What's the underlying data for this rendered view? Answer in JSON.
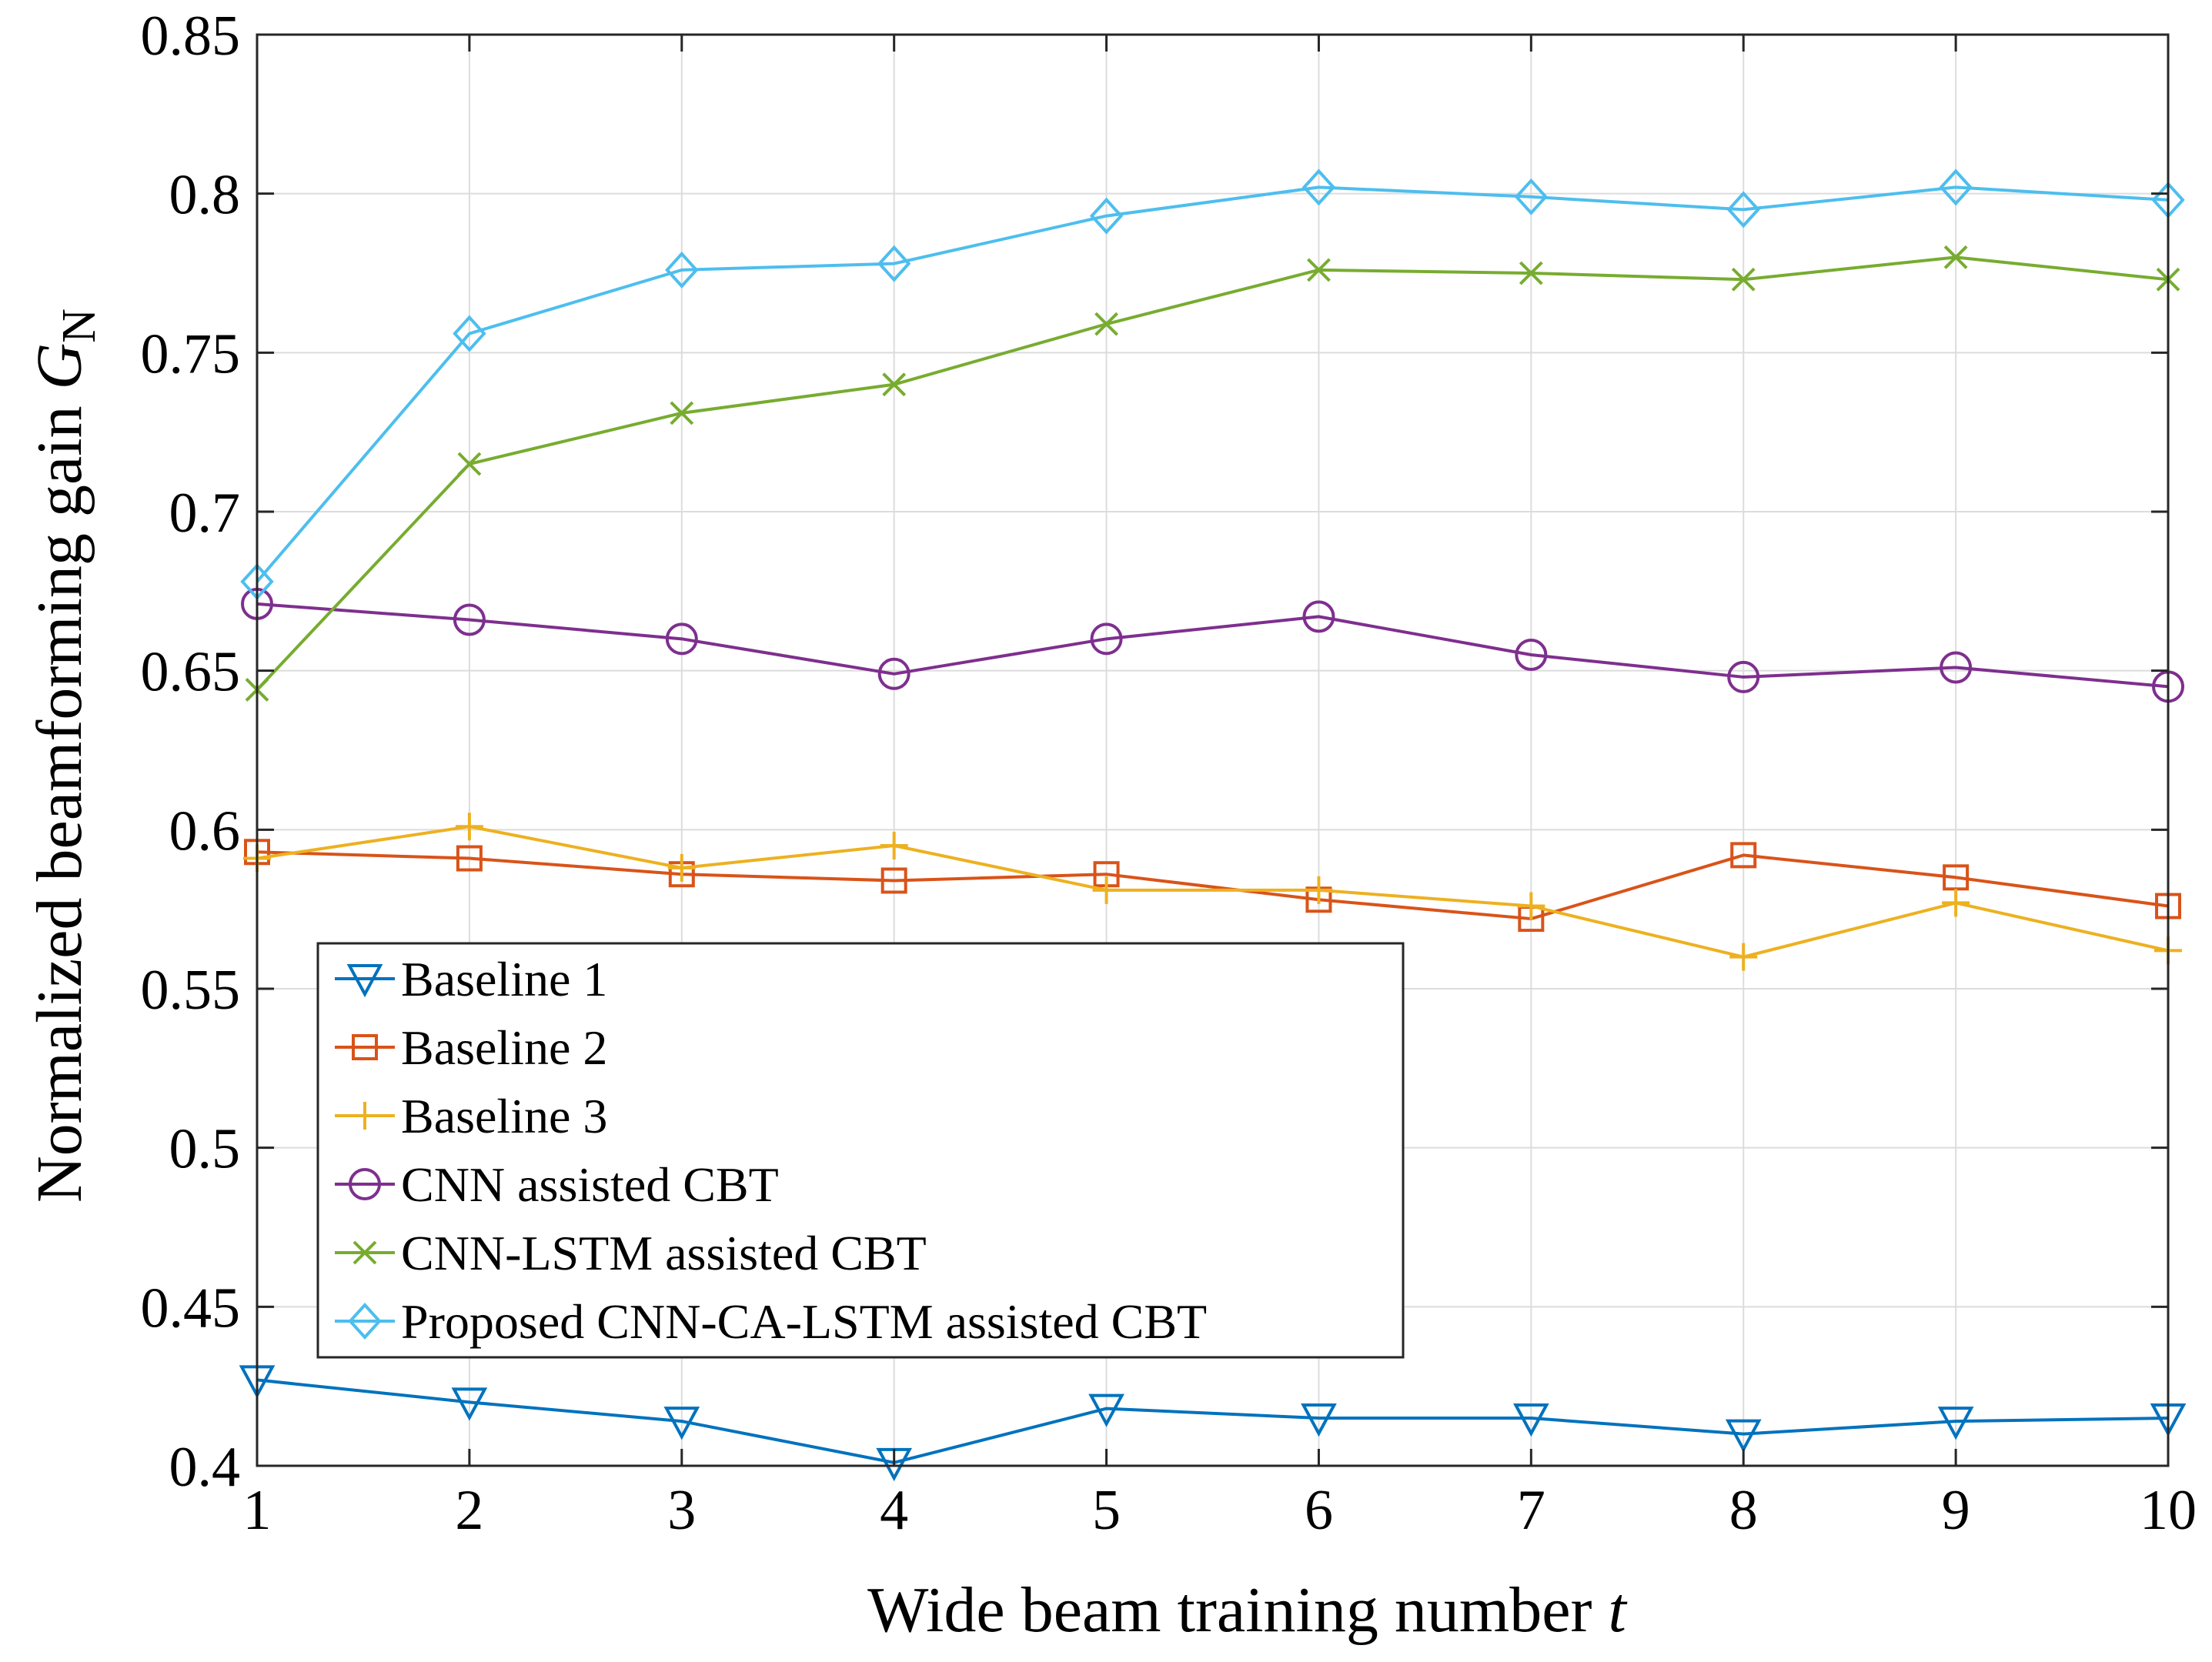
{
  "chart_data": {
    "type": "line",
    "xlabel": "Wide beam training number",
    "xlabel_var": "t",
    "ylabel": "Normalized beamforming gain",
    "ylabel_var": "G",
    "ylabel_sub": "N",
    "x": [
      1,
      2,
      3,
      4,
      5,
      6,
      7,
      8,
      9,
      10
    ],
    "xlim": [
      1,
      10
    ],
    "ylim": [
      0.4,
      0.85
    ],
    "x_ticks": [
      "1",
      "2",
      "3",
      "4",
      "5",
      "6",
      "7",
      "8",
      "9",
      "10"
    ],
    "y_ticks": [
      "0.4",
      "0.45",
      "0.5",
      "0.55",
      "0.6",
      "0.65",
      "0.7",
      "0.75",
      "0.8",
      "0.85"
    ],
    "grid": true,
    "legend_position": "lower-left",
    "series": [
      {
        "name": "Baseline 1",
        "color": "#0072BD",
        "marker": "triangle-down",
        "values": [
          0.427,
          0.42,
          0.414,
          0.401,
          0.418,
          0.415,
          0.415,
          0.41,
          0.414,
          0.415
        ]
      },
      {
        "name": "Baseline 2",
        "color": "#D95319",
        "marker": "square",
        "values": [
          0.593,
          0.591,
          0.586,
          0.584,
          0.586,
          0.578,
          0.572,
          0.592,
          0.585,
          0.576
        ]
      },
      {
        "name": "Baseline 3",
        "color": "#EDB120",
        "marker": "plus",
        "values": [
          0.591,
          0.601,
          0.588,
          0.595,
          0.581,
          0.581,
          0.576,
          0.56,
          0.577,
          0.562
        ]
      },
      {
        "name": "CNN assisted CBT",
        "color": "#7E2F8E",
        "marker": "circle",
        "values": [
          0.671,
          0.666,
          0.66,
          0.649,
          0.66,
          0.667,
          0.655,
          0.648,
          0.651,
          0.645
        ]
      },
      {
        "name": "CNN-LSTM assisted CBT",
        "color": "#77AC30",
        "marker": "x",
        "values": [
          0.644,
          0.715,
          0.731,
          0.74,
          0.759,
          0.776,
          0.775,
          0.773,
          0.78,
          0.773
        ]
      },
      {
        "name": "Proposed CNN-CA-LSTM assisted CBT",
        "color": "#4DBEEE",
        "marker": "diamond",
        "values": [
          0.678,
          0.756,
          0.776,
          0.778,
          0.793,
          0.802,
          0.799,
          0.795,
          0.802,
          0.798
        ]
      }
    ]
  }
}
